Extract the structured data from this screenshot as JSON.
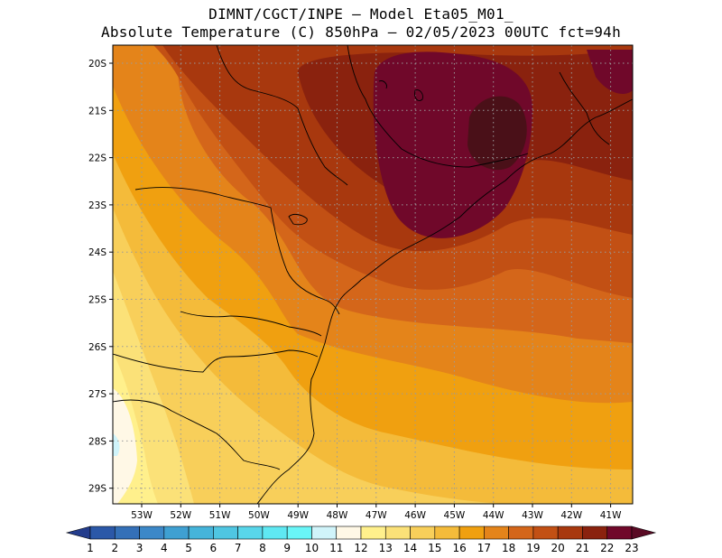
{
  "title_line1": "DIMNT/CGCT/INPE –  Model Eta05_M01_",
  "title_line2": "Absolute Temperature (C) 850hPa –  02/05/2023 00UTC fct=94h",
  "map": {
    "lat_labels": [
      "20S",
      "21S",
      "22S",
      "23S",
      "24S",
      "25S",
      "26S",
      "27S",
      "28S",
      "29S"
    ],
    "lon_labels": [
      "53W",
      "52W",
      "51W",
      "50W",
      "49W",
      "48W",
      "47W",
      "46W",
      "45W",
      "44W",
      "43W",
      "42W",
      "41W"
    ],
    "gridlines": "dotted",
    "temperature_field_peak_c": 23
  },
  "colorbar": {
    "labels": [
      "1",
      "2",
      "3",
      "4",
      "5",
      "6",
      "7",
      "8",
      "9",
      "10",
      "11",
      "12",
      "13",
      "14",
      "15",
      "16",
      "17",
      "18",
      "19",
      "20",
      "21",
      "22",
      "23"
    ],
    "colors": [
      "#233c8c",
      "#2b58a8",
      "#3470b8",
      "#3c88c8",
      "#3fa0d2",
      "#45b4da",
      "#4fc6e2",
      "#58d6ea",
      "#5fe8f2",
      "#69f6f8",
      "#d0f4fa",
      "#fff8e6",
      "#fff08c",
      "#fbe178",
      "#f8cf5a",
      "#f4bb3a",
      "#f0a010",
      "#e4841a",
      "#d4661a",
      "#c25014",
      "#a8380e",
      "#8a220e",
      "#70082a",
      "#5a0a24"
    ]
  }
}
